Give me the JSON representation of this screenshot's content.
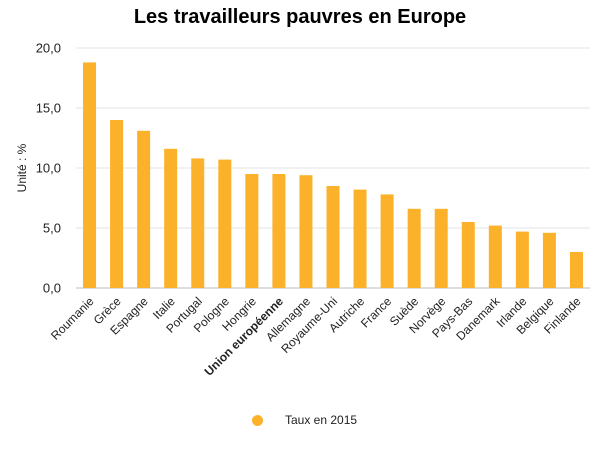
{
  "chart_data": {
    "type": "bar",
    "title": "Les travailleurs pauvres en Europe",
    "ylabel": "Unité : %",
    "xlabel": "",
    "ylim": [
      0,
      20
    ],
    "yticks": [
      "0,0",
      "5,0",
      "10,0",
      "15,0",
      "20,0"
    ],
    "grid": true,
    "legend_position": "bottom",
    "categories": [
      "Roumanie",
      "Grèce",
      "Espagne",
      "Italie",
      "Portugal",
      "Pologne",
      "Hongrie",
      "Union européenne",
      "Allemagne",
      "Royaume-Uni",
      "Autriche",
      "France",
      "Suède",
      "Norvège",
      "Pays-Bas",
      "Danemark",
      "Irlande",
      "Belgique",
      "Finlande"
    ],
    "highlight_category": "Union européenne",
    "series": [
      {
        "name": "Taux en 2015",
        "color": "#FBB22A",
        "values": [
          18.8,
          14.0,
          13.1,
          11.6,
          10.8,
          10.7,
          9.5,
          9.5,
          9.4,
          8.5,
          8.2,
          7.8,
          6.6,
          6.6,
          5.5,
          5.2,
          4.7,
          4.6,
          3.0
        ]
      }
    ]
  }
}
